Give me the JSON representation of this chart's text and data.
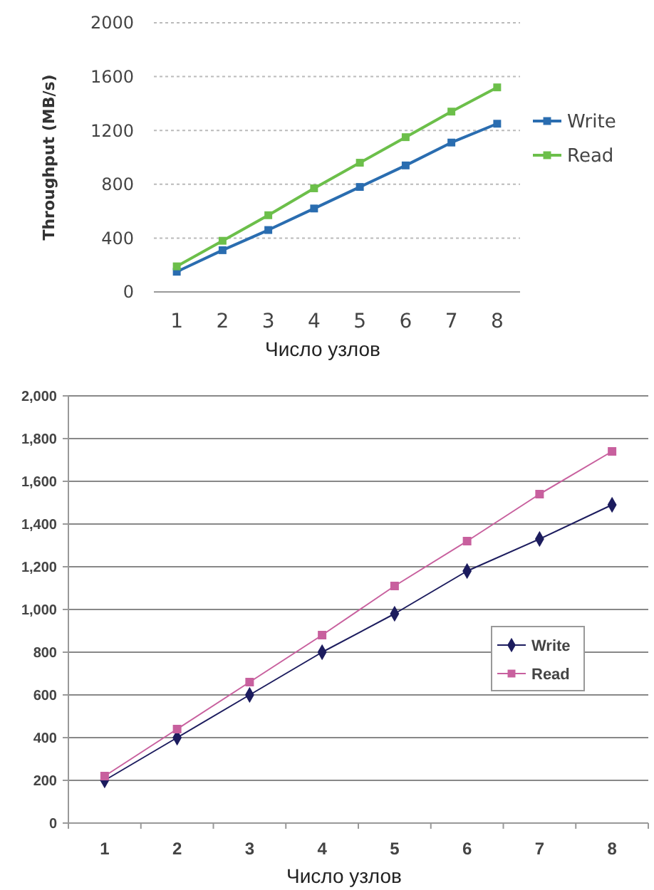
{
  "chart_data": [
    {
      "type": "line",
      "ylabel": "Throughput (MB/s)",
      "xlabel": "Число узлов",
      "categories": [
        "1",
        "2",
        "3",
        "4",
        "5",
        "6",
        "7",
        "8"
      ],
      "ylim": [
        0,
        2000
      ],
      "yticks": [
        0,
        400,
        800,
        1200,
        1600,
        2000
      ],
      "grid": "y",
      "legend": "right",
      "marker": "square",
      "series": [
        {
          "name": "Write",
          "color": "#2a6db0",
          "values": [
            150,
            310,
            460,
            620,
            780,
            940,
            1110,
            1250
          ]
        },
        {
          "name": "Read",
          "color": "#6cbf4a",
          "values": [
            190,
            380,
            570,
            770,
            960,
            1150,
            1340,
            1520
          ]
        }
      ]
    },
    {
      "type": "line",
      "xlabel": "Число узлов",
      "categories": [
        "1",
        "2",
        "3",
        "4",
        "5",
        "6",
        "7",
        "8"
      ],
      "ylim": [
        0,
        2000
      ],
      "yticks": [
        0,
        {
          "value": 200,
          "label": "200"
        },
        400,
        600,
        800,
        {
          "value": 1000,
          "label": "1,000"
        },
        {
          "value": 1200,
          "label": "1,200"
        },
        {
          "value": 1400,
          "label": "1,400"
        },
        {
          "value": 1600,
          "label": "1,600"
        },
        {
          "value": 1800,
          "label": "1,800"
        },
        {
          "value": 2000,
          "label": "2,000"
        }
      ],
      "grid": "y",
      "legend": "right",
      "series": [
        {
          "name": "Write",
          "color": "#1c1c5e",
          "marker": "diamond",
          "values": [
            200,
            400,
            600,
            800,
            980,
            1180,
            1330,
            1490
          ]
        },
        {
          "name": "Read",
          "color": "#c8609e",
          "marker": "square",
          "values": [
            220,
            440,
            660,
            880,
            1110,
            1320,
            1540,
            1740
          ]
        }
      ]
    }
  ]
}
